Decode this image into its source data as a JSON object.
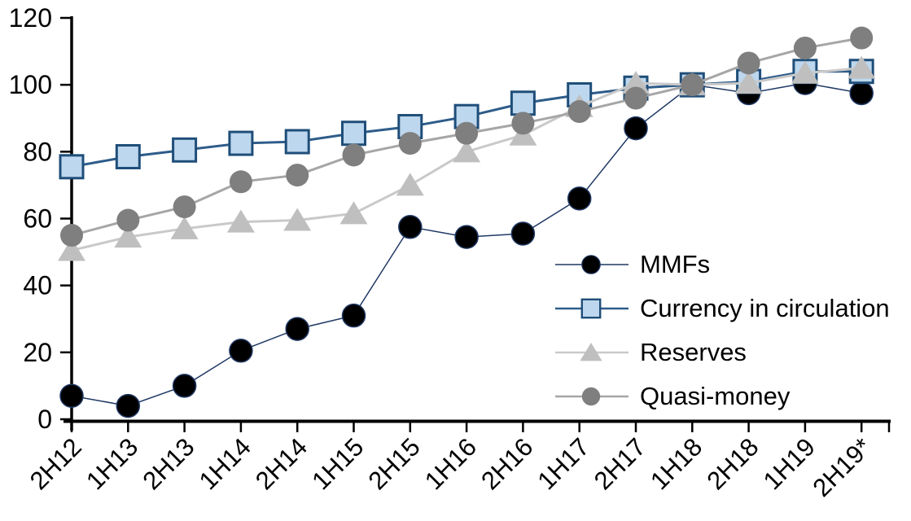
{
  "chart_data": {
    "type": "line",
    "title": "",
    "xlabel": "",
    "ylabel": "",
    "categories": [
      "2H12",
      "1H13",
      "2H13",
      "1H14",
      "2H14",
      "1H15",
      "2H15",
      "1H16",
      "2H16",
      "1H17",
      "2H17",
      "1H18",
      "2H18",
      "1H19",
      "2H19*"
    ],
    "series": [
      {
        "name": "MMFs",
        "marker": "circle",
        "marker_color": "#000000",
        "marker_stroke": "#1F3864",
        "line_color": "#1F3864",
        "line_width": 1.5,
        "values": [
          7,
          4,
          10,
          20.5,
          27,
          31,
          57.5,
          54.5,
          55.5,
          66,
          87,
          100,
          97.5,
          100.5,
          97.5
        ]
      },
      {
        "name": "Currency in circulation",
        "marker": "square",
        "marker_color": "#BDD7EE",
        "marker_stroke": "#1F4E79",
        "line_color": "#2E5C8A",
        "line_width": 3,
        "values": [
          75.5,
          78.5,
          80.5,
          82.5,
          83,
          85.5,
          87.5,
          90.5,
          94.5,
          97,
          99,
          100,
          101,
          104,
          104
        ]
      },
      {
        "name": "Reserves",
        "marker": "triangle",
        "marker_color": "#BFBFBF",
        "marker_stroke": "none",
        "line_color": "#C9C9C9",
        "line_width": 3,
        "values": [
          50.5,
          54.5,
          57,
          59,
          59.5,
          61.5,
          70,
          80,
          85,
          93.5,
          100.5,
          100,
          100.5,
          103.5,
          105
        ]
      },
      {
        "name": "Quasi-money",
        "marker": "circle",
        "marker_color": "#7F7F7F",
        "marker_stroke": "none",
        "line_color": "#A6A6A6",
        "line_width": 3,
        "values": [
          55,
          59.5,
          63.5,
          71,
          73,
          79,
          82.5,
          85.5,
          88.5,
          92,
          96,
          100,
          106.5,
          111,
          114
        ]
      }
    ],
    "ylim": [
      0,
      120
    ],
    "yticks": [
      0,
      20,
      40,
      60,
      80,
      100,
      120
    ],
    "grid": false,
    "legend_position": "inside-right",
    "axis_color": "#000000",
    "background_color": "#FFFFFF"
  }
}
